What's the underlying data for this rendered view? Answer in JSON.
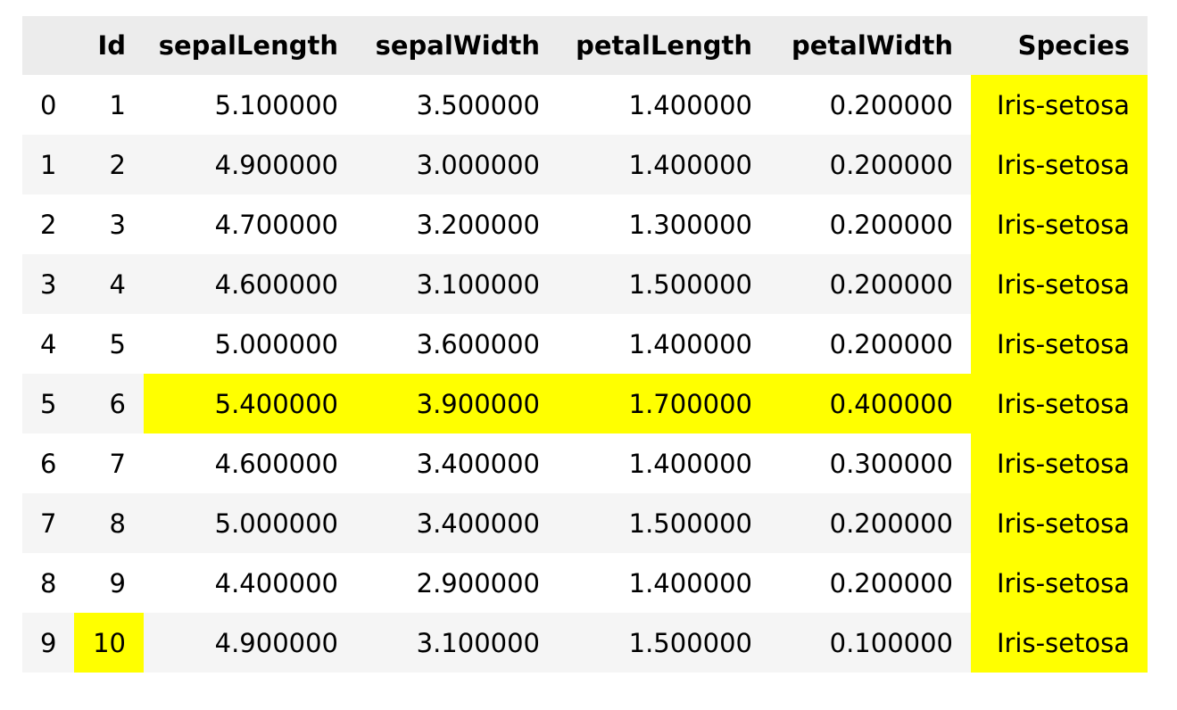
{
  "table": {
    "highlight_color": "#ffff00",
    "columns": [
      "",
      "Id",
      "sepalLength",
      "sepalWidth",
      "petalLength",
      "petalWidth",
      "Species"
    ],
    "rows": [
      {
        "index": "0",
        "cells": [
          "1",
          "5.100000",
          "3.500000",
          "1.400000",
          "0.200000",
          "Iris-setosa"
        ],
        "highlight": [
          false,
          false,
          false,
          false,
          false,
          true
        ]
      },
      {
        "index": "1",
        "cells": [
          "2",
          "4.900000",
          "3.000000",
          "1.400000",
          "0.200000",
          "Iris-setosa"
        ],
        "highlight": [
          false,
          false,
          false,
          false,
          false,
          true
        ]
      },
      {
        "index": "2",
        "cells": [
          "3",
          "4.700000",
          "3.200000",
          "1.300000",
          "0.200000",
          "Iris-setosa"
        ],
        "highlight": [
          false,
          false,
          false,
          false,
          false,
          true
        ]
      },
      {
        "index": "3",
        "cells": [
          "4",
          "4.600000",
          "3.100000",
          "1.500000",
          "0.200000",
          "Iris-setosa"
        ],
        "highlight": [
          false,
          false,
          false,
          false,
          false,
          true
        ]
      },
      {
        "index": "4",
        "cells": [
          "5",
          "5.000000",
          "3.600000",
          "1.400000",
          "0.200000",
          "Iris-setosa"
        ],
        "highlight": [
          false,
          false,
          false,
          false,
          false,
          true
        ]
      },
      {
        "index": "5",
        "cells": [
          "6",
          "5.400000",
          "3.900000",
          "1.700000",
          "0.400000",
          "Iris-setosa"
        ],
        "highlight": [
          false,
          true,
          true,
          true,
          true,
          true
        ]
      },
      {
        "index": "6",
        "cells": [
          "7",
          "4.600000",
          "3.400000",
          "1.400000",
          "0.300000",
          "Iris-setosa"
        ],
        "highlight": [
          false,
          false,
          false,
          false,
          false,
          true
        ]
      },
      {
        "index": "7",
        "cells": [
          "8",
          "5.000000",
          "3.400000",
          "1.500000",
          "0.200000",
          "Iris-setosa"
        ],
        "highlight": [
          false,
          false,
          false,
          false,
          false,
          true
        ]
      },
      {
        "index": "8",
        "cells": [
          "9",
          "4.400000",
          "2.900000",
          "1.400000",
          "0.200000",
          "Iris-setosa"
        ],
        "highlight": [
          false,
          false,
          false,
          false,
          false,
          true
        ]
      },
      {
        "index": "9",
        "cells": [
          "10",
          "4.900000",
          "3.100000",
          "1.500000",
          "0.100000",
          "Iris-setosa"
        ],
        "highlight": [
          true,
          false,
          false,
          false,
          false,
          true
        ]
      }
    ]
  }
}
